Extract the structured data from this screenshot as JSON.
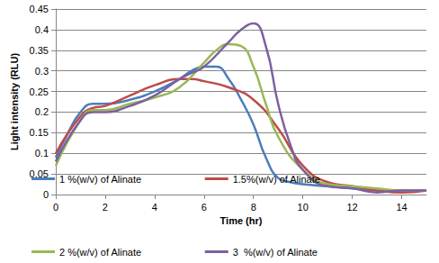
{
  "chart_data": {
    "type": "line",
    "x_label": "Time (hr)",
    "y_label": "Light intensity (RLU)",
    "xlim": [
      0,
      15
    ],
    "xticks": [
      0,
      2,
      4,
      6,
      8,
      10,
      12,
      14
    ],
    "ylim": [
      0,
      0.45
    ],
    "yticks": [
      0,
      0.05,
      0.1,
      0.15,
      0.2,
      0.25,
      0.3,
      0.35,
      0.4,
      0.45
    ],
    "grid": true,
    "legend": "bottom",
    "marker": "none",
    "line_style": "solid",
    "series": [
      {
        "name": "1 %(w/v) of Alinate",
        "color": "#4a7ebb",
        "x": [
          0,
          0.5,
          1,
          1.5,
          2,
          3,
          4,
          5,
          5.5,
          6,
          6.5,
          7,
          7.5,
          8,
          8.5,
          9,
          9.5,
          10,
          11,
          12,
          13,
          14,
          15
        ],
        "values": [
          0.09,
          0.15,
          0.2,
          0.22,
          0.22,
          0.23,
          0.25,
          0.28,
          0.3,
          0.31,
          0.31,
          0.28,
          0.23,
          0.17,
          0.09,
          0.04,
          0.03,
          0.025,
          0.02,
          0.015,
          0.01,
          0.01,
          0.01
        ]
      },
      {
        "name": "1.5%(w/v) of Alinate",
        "color": "#be4b48",
        "x": [
          0,
          1,
          1.5,
          2,
          3,
          4,
          5,
          5.5,
          6,
          7,
          8,
          9,
          10,
          11,
          12,
          13,
          14,
          15
        ],
        "values": [
          0.1,
          0.19,
          0.21,
          0.215,
          0.24,
          0.265,
          0.28,
          0.28,
          0.275,
          0.26,
          0.23,
          0.16,
          0.07,
          0.03,
          0.02,
          0.01,
          0.005,
          0.01
        ]
      },
      {
        "name": "2 %(w/v) of Alinate",
        "color": "#98b954",
        "x": [
          0,
          1,
          1.5,
          2,
          3,
          4,
          5,
          6,
          6.5,
          7,
          7.5,
          8,
          8.5,
          9,
          10,
          11,
          12,
          13,
          14,
          15
        ],
        "values": [
          0.07,
          0.18,
          0.205,
          0.205,
          0.22,
          0.235,
          0.26,
          0.32,
          0.35,
          0.365,
          0.36,
          0.31,
          0.22,
          0.14,
          0.06,
          0.025,
          0.02,
          0.015,
          0.01,
          0.01
        ]
      },
      {
        "name": "3  %(w/v) of Alinate",
        "color": "#7d60a0",
        "x": [
          0,
          1,
          1.5,
          2,
          3,
          4,
          5,
          5.5,
          6,
          7,
          7.5,
          8,
          8.5,
          9,
          9.5,
          10,
          11,
          12,
          13,
          14,
          15
        ],
        "values": [
          0.08,
          0.18,
          0.2,
          0.2,
          0.215,
          0.24,
          0.28,
          0.295,
          0.31,
          0.37,
          0.4,
          0.415,
          0.36,
          0.22,
          0.12,
          0.06,
          0.02,
          0.015,
          0.005,
          0.01,
          0.01
        ]
      }
    ]
  }
}
